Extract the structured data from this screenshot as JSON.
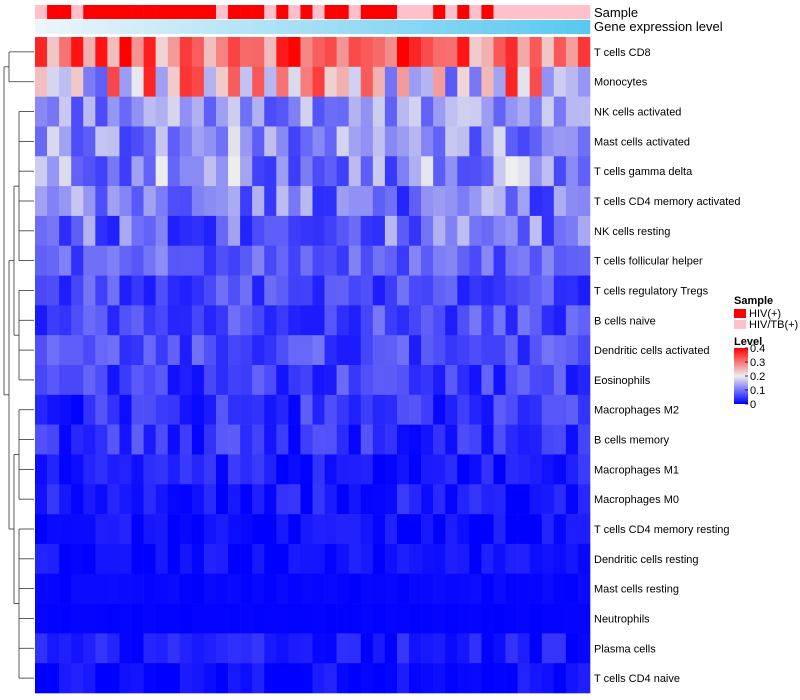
{
  "chart_data": {
    "type": "heatmap",
    "title": "",
    "annotation_labels": [
      "Sample",
      "Gene expression level"
    ],
    "rows": [
      "T cells CD8",
      "Monocytes",
      "NK cells activated",
      "Mast cells activated",
      "T cells gamma delta",
      "T cells CD4 memory activated",
      "NK cells resting",
      "T cells follicular helper",
      "T cells regulatory  Tregs",
      "B cells naive",
      "Dendritic cells activated",
      "Eosinophils",
      "Macrophages M2",
      "B cells memory",
      "Macrophages M1",
      "Macrophages M0",
      "T cells CD4 memory resting",
      "Dendritic cells resting",
      "Mast cells resting",
      "Neutrophils",
      "Plasma cells",
      "T cells CD4 naive"
    ],
    "n_samples": 46,
    "sample_groups": [
      1,
      0,
      0,
      1,
      0,
      0,
      0,
      0,
      0,
      0,
      0,
      0,
      0,
      0,
      0,
      1,
      0,
      0,
      0,
      1,
      0,
      1,
      0,
      1,
      0,
      0,
      1,
      0,
      0,
      0,
      1,
      1,
      1,
      0,
      1,
      0,
      1,
      0,
      1,
      1,
      1,
      1,
      1,
      1,
      1,
      1
    ],
    "sample_legend": {
      "title": "Sample",
      "entries": [
        {
          "label": "HIV(+)",
          "color": "#ff0000"
        },
        {
          "label": "HIV/TB(+)",
          "color": "#ffc0cb"
        }
      ]
    },
    "level_legend": {
      "title": "Level",
      "ticks": [
        0.4,
        0.3,
        0.2,
        0.1,
        0
      ],
      "range": [
        0,
        0.4
      ],
      "colors": [
        "#0000ff",
        "#eeeeee",
        "#ff0000"
      ]
    },
    "row_base_levels": [
      0.32,
      0.22,
      0.12,
      0.12,
      0.12,
      0.1,
      0.09,
      0.08,
      0.06,
      0.06,
      0.06,
      0.05,
      0.04,
      0.04,
      0.02,
      0.02,
      0.01,
      0.01,
      0.005,
      0.002,
      0.02,
      0.01
    ],
    "row_variation": [
      0.1,
      0.15,
      0.06,
      0.07,
      0.08,
      0.07,
      0.07,
      0.04,
      0.04,
      0.04,
      0.04,
      0.04,
      0.04,
      0.04,
      0.03,
      0.03,
      0.02,
      0.02,
      0.005,
      0.002,
      0.03,
      0.02
    ],
    "dendrogram": "row clustering tree (left)"
  }
}
